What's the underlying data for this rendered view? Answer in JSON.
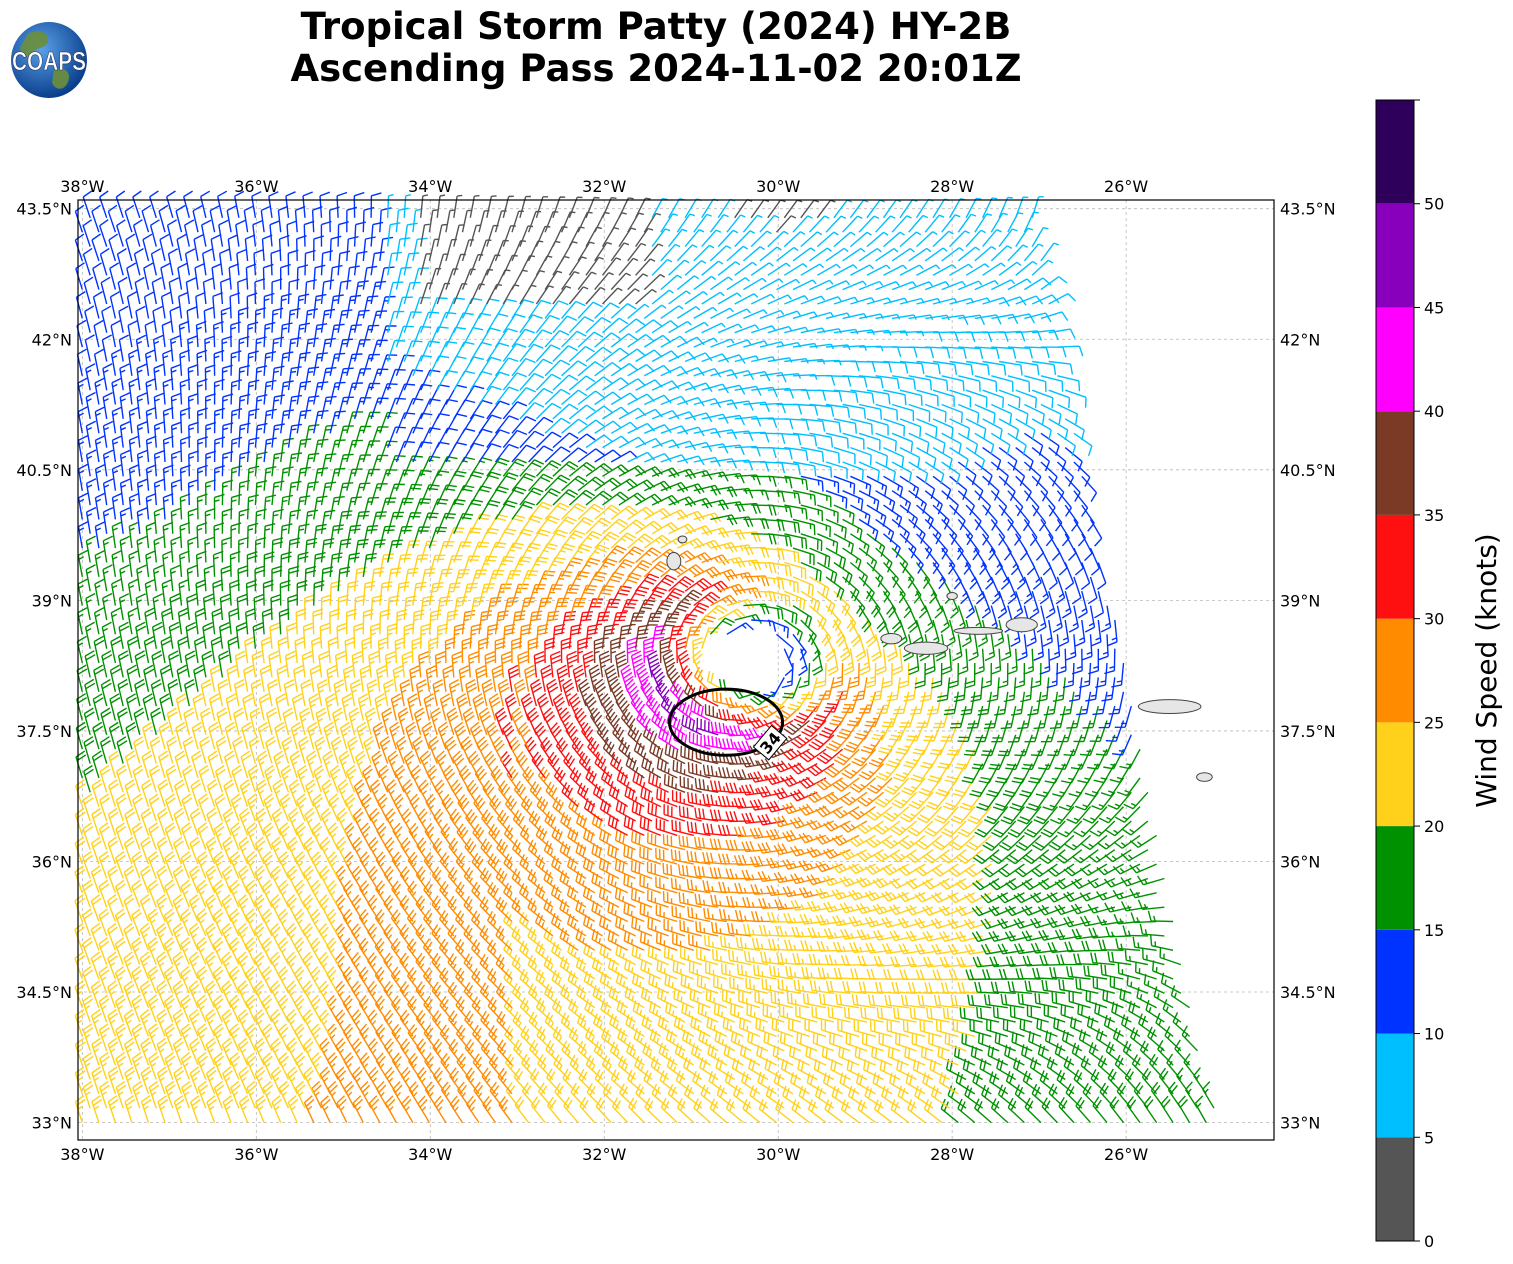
{
  "title": {
    "line1": "Tropical Storm Patty (2024) HY-2B",
    "line2": "Ascending Pass 2024-11-02 20:01Z"
  },
  "logo": {
    "text": "COAPS",
    "icon": "globe-logo-icon"
  },
  "map": {
    "lon_range": [
      -38.05,
      -24.3
    ],
    "lat_range": [
      32.8,
      43.6
    ],
    "lon_ticks": [
      {
        "value": -38,
        "label": "38°W"
      },
      {
        "value": -36,
        "label": "36°W"
      },
      {
        "value": -34,
        "label": "34°W"
      },
      {
        "value": -32,
        "label": "32°W"
      },
      {
        "value": -30,
        "label": "30°W"
      },
      {
        "value": -28,
        "label": "28°W"
      },
      {
        "value": -26,
        "label": "26°W"
      }
    ],
    "lat_ticks": [
      {
        "value": 43.5,
        "label": "43.5°N"
      },
      {
        "value": 42,
        "label": "42°N"
      },
      {
        "value": 40.5,
        "label": "40.5°N"
      },
      {
        "value": 39,
        "label": "39°N"
      },
      {
        "value": 37.5,
        "label": "37.5°N"
      },
      {
        "value": 36,
        "label": "36°N"
      },
      {
        "value": 34.5,
        "label": "34.5°N"
      },
      {
        "value": 33,
        "label": "33°N"
      }
    ],
    "gridlines": true,
    "storm_center": {
      "lon": -30.35,
      "lat": 38.3
    },
    "contour": {
      "label": "34",
      "center": {
        "lon": -30.6,
        "lat": 37.6
      },
      "radius_lon": 0.65,
      "radius_lat": 0.38
    }
  },
  "islands": [
    {
      "name": "Flores",
      "lon": -31.2,
      "lat": 39.45,
      "rx": 0.08,
      "ry": 0.1
    },
    {
      "name": "Corvo",
      "lon": -31.1,
      "lat": 39.7,
      "rx": 0.05,
      "ry": 0.04
    },
    {
      "name": "Graciosa",
      "lon": -28.0,
      "lat": 39.05,
      "rx": 0.06,
      "ry": 0.04
    },
    {
      "name": "Faial",
      "lon": -28.7,
      "lat": 38.56,
      "rx": 0.12,
      "ry": 0.06
    },
    {
      "name": "Pico",
      "lon": -28.3,
      "lat": 38.45,
      "rx": 0.25,
      "ry": 0.07
    },
    {
      "name": "Sao Jorge",
      "lon": -27.7,
      "lat": 38.65,
      "rx": 0.28,
      "ry": 0.04
    },
    {
      "name": "Terceira",
      "lon": -27.2,
      "lat": 38.72,
      "rx": 0.18,
      "ry": 0.08
    },
    {
      "name": "Sao Miguel",
      "lon": -25.5,
      "lat": 37.78,
      "rx": 0.36,
      "ry": 0.08
    },
    {
      "name": "Santa Maria",
      "lon": -25.1,
      "lat": 36.97,
      "rx": 0.09,
      "ry": 0.05
    }
  ],
  "colorbar": {
    "label": "Wind Speed (knots)",
    "bounds": [
      0,
      5,
      10,
      15,
      20,
      25,
      30,
      35,
      40,
      45,
      50,
      55
    ],
    "tick_labels": [
      "0",
      "5",
      "10",
      "15",
      "20",
      "25",
      "30",
      "35",
      "40",
      "45",
      "50"
    ],
    "colors": [
      "#555555",
      "#00bfff",
      "#0033ff",
      "#009100",
      "#ffd11a",
      "#ff8c00",
      "#ff1010",
      "#7b3a26",
      "#ff00ff",
      "#8800bb",
      "#2e005c"
    ]
  }
}
